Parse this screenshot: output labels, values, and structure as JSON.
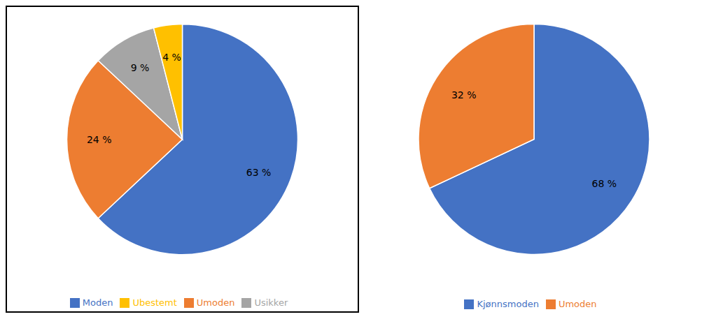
{
  "chart_data": [
    {
      "type": "pie",
      "categories": [
        "Moden",
        "Umoden",
        "Usikker",
        "Ubestemt"
      ],
      "values": [
        63,
        24,
        9,
        4
      ],
      "value_labels": [
        "63 %",
        "24 %",
        "9 %",
        "4 %"
      ],
      "colors": [
        "#4472C4",
        "#ED7D31",
        "#A5A5A5",
        "#FFC000"
      ],
      "data_labels": true,
      "legend": "bottom"
    },
    {
      "type": "pie",
      "categories": [
        "Kjønnsmoden",
        "Umoden"
      ],
      "values": [
        68,
        32
      ],
      "value_labels": [
        "68 %",
        "32 %"
      ],
      "colors": [
        "#4472C4",
        "#ED7D31"
      ],
      "data_labels": true,
      "legend": "bottom"
    }
  ]
}
